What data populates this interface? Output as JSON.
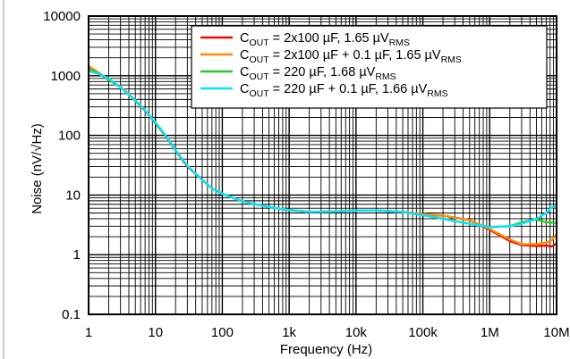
{
  "chart_data": {
    "type": "line",
    "xlabel": "Frequency (Hz)",
    "ylabel": "Noise (nV/√Hz)",
    "x_scale": "log",
    "y_scale": "log",
    "xlim": [
      1,
      10000000
    ],
    "ylim": [
      0.1,
      10000
    ],
    "grid": true,
    "legend_position": "top-right",
    "x_ticks": [
      {
        "value": 1,
        "label": "1"
      },
      {
        "value": 10,
        "label": "10"
      },
      {
        "value": 100,
        "label": "100"
      },
      {
        "value": 1000,
        "label": "1k"
      },
      {
        "value": 10000,
        "label": "10k"
      },
      {
        "value": 100000,
        "label": "100k"
      },
      {
        "value": 1000000,
        "label": "1M"
      },
      {
        "value": 10000000,
        "label": "10M"
      }
    ],
    "y_ticks": [
      {
        "value": 0.1,
        "label": "0.1"
      },
      {
        "value": 1,
        "label": "1"
      },
      {
        "value": 10,
        "label": "10"
      },
      {
        "value": 100,
        "label": "100"
      },
      {
        "value": 1000,
        "label": "1000"
      },
      {
        "value": 10000,
        "label": "10000"
      }
    ],
    "series": [
      {
        "name": "C_OUT = 2x100 µF, 1.65 µV_RMS",
        "color": "#ff0000",
        "legend_parts": {
          "main": "C",
          "sub1": "OUT",
          "mid": " = 2x100 µF, 1.65 µV",
          "sub2": "RMS"
        },
        "points": [
          [
            1,
            1350
          ],
          [
            1.5,
            1050
          ],
          [
            2,
            850
          ],
          [
            3,
            650
          ],
          [
            5,
            380
          ],
          [
            7,
            260
          ],
          [
            10,
            160
          ],
          [
            15,
            90
          ],
          [
            20,
            55
          ],
          [
            30,
            30
          ],
          [
            50,
            18
          ],
          [
            70,
            13
          ],
          [
            100,
            10.5
          ],
          [
            200,
            7.8
          ],
          [
            500,
            6.3
          ],
          [
            1000,
            5.6
          ],
          [
            2000,
            5.2
          ],
          [
            5000,
            5.3
          ],
          [
            10000,
            5.5
          ],
          [
            20000,
            5.5
          ],
          [
            50000,
            5.2
          ],
          [
            100000,
            4.8
          ],
          [
            200000,
            4.5
          ],
          [
            500000,
            3.8
          ],
          [
            1000000,
            2.6
          ],
          [
            2000000,
            1.7
          ],
          [
            3000000,
            1.45
          ],
          [
            5000000,
            1.4
          ],
          [
            7000000,
            1.42
          ],
          [
            8500000,
            1.38
          ],
          [
            10000000,
            1.55
          ]
        ]
      },
      {
        "name": "C_OUT = 2x100 µF + 0.1 µF, 1.65 µV_RMS",
        "color": "#ff8c00",
        "legend_parts": {
          "main": "C",
          "sub1": "OUT",
          "mid": " = 2x100 µF + 0.1 µF, 1.65 µV",
          "sub2": "RMS"
        },
        "points": [
          [
            1,
            1450
          ],
          [
            1.5,
            1080
          ],
          [
            2,
            870
          ],
          [
            3,
            660
          ],
          [
            5,
            390
          ],
          [
            7,
            265
          ],
          [
            10,
            165
          ],
          [
            15,
            92
          ],
          [
            20,
            56
          ],
          [
            30,
            31
          ],
          [
            50,
            18
          ],
          [
            70,
            13
          ],
          [
            100,
            10.5
          ],
          [
            200,
            7.8
          ],
          [
            500,
            6.3
          ],
          [
            1000,
            5.6
          ],
          [
            2000,
            5.2
          ],
          [
            5000,
            5.3
          ],
          [
            10000,
            5.5
          ],
          [
            20000,
            5.5
          ],
          [
            50000,
            5.2
          ],
          [
            100000,
            4.8
          ],
          [
            200000,
            4.5
          ],
          [
            500000,
            3.8
          ],
          [
            1000000,
            2.7
          ],
          [
            2000000,
            1.8
          ],
          [
            3000000,
            1.5
          ],
          [
            5000000,
            1.5
          ],
          [
            7000000,
            1.6
          ],
          [
            8500000,
            1.75
          ],
          [
            10000000,
            2.2
          ]
        ]
      },
      {
        "name": "C_OUT = 220 µF, 1.68 µV_RMS",
        "color": "#22cc22",
        "legend_parts": {
          "main": "C",
          "sub1": "OUT",
          "mid": " = 220 µF, 1.68 µV",
          "sub2": "RMS"
        },
        "points": [
          [
            1,
            1300
          ],
          [
            1.5,
            1050
          ],
          [
            2,
            860
          ],
          [
            3,
            640
          ],
          [
            5,
            380
          ],
          [
            7,
            265
          ],
          [
            10,
            162
          ],
          [
            15,
            92
          ],
          [
            20,
            56
          ],
          [
            30,
            31
          ],
          [
            50,
            18
          ],
          [
            70,
            13
          ],
          [
            100,
            10.5
          ],
          [
            200,
            7.8
          ],
          [
            500,
            6.3
          ],
          [
            1000,
            5.6
          ],
          [
            2000,
            5.2
          ],
          [
            5000,
            5.3
          ],
          [
            10000,
            5.5
          ],
          [
            20000,
            5.5
          ],
          [
            50000,
            5.2
          ],
          [
            100000,
            4.6
          ],
          [
            200000,
            4.0
          ],
          [
            500000,
            3.3
          ],
          [
            1000000,
            2.9
          ],
          [
            2000000,
            3.0
          ],
          [
            3000000,
            3.5
          ],
          [
            5000000,
            3.9
          ],
          [
            7000000,
            3.5
          ],
          [
            10000000,
            3.4
          ]
        ]
      },
      {
        "name": "C_OUT = 220 µF + 0.1 µF, 1.66 µV_RMS",
        "color": "#00e5ff",
        "legend_parts": {
          "main": "C",
          "sub1": "OUT",
          "mid": " = 220 µF + 0.1 µF, 1.66 µV",
          "sub2": "RMS"
        },
        "points": [
          [
            1,
            1200
          ],
          [
            1.5,
            1050
          ],
          [
            2,
            900
          ],
          [
            3,
            640
          ],
          [
            5,
            385
          ],
          [
            7,
            265
          ],
          [
            10,
            165
          ],
          [
            15,
            92
          ],
          [
            20,
            56
          ],
          [
            30,
            31
          ],
          [
            50,
            18
          ],
          [
            70,
            13
          ],
          [
            100,
            10.5
          ],
          [
            200,
            7.8
          ],
          [
            500,
            6.3
          ],
          [
            1000,
            5.6
          ],
          [
            2000,
            5.2
          ],
          [
            5000,
            5.3
          ],
          [
            10000,
            5.5
          ],
          [
            20000,
            5.5
          ],
          [
            50000,
            5.2
          ],
          [
            100000,
            4.6
          ],
          [
            200000,
            4.0
          ],
          [
            500000,
            3.3
          ],
          [
            1000000,
            2.9
          ],
          [
            2000000,
            3.0
          ],
          [
            3000000,
            3.3
          ],
          [
            5000000,
            4.0
          ],
          [
            7000000,
            5.0
          ],
          [
            8500000,
            6.2
          ],
          [
            10000000,
            6.5
          ]
        ]
      }
    ]
  }
}
